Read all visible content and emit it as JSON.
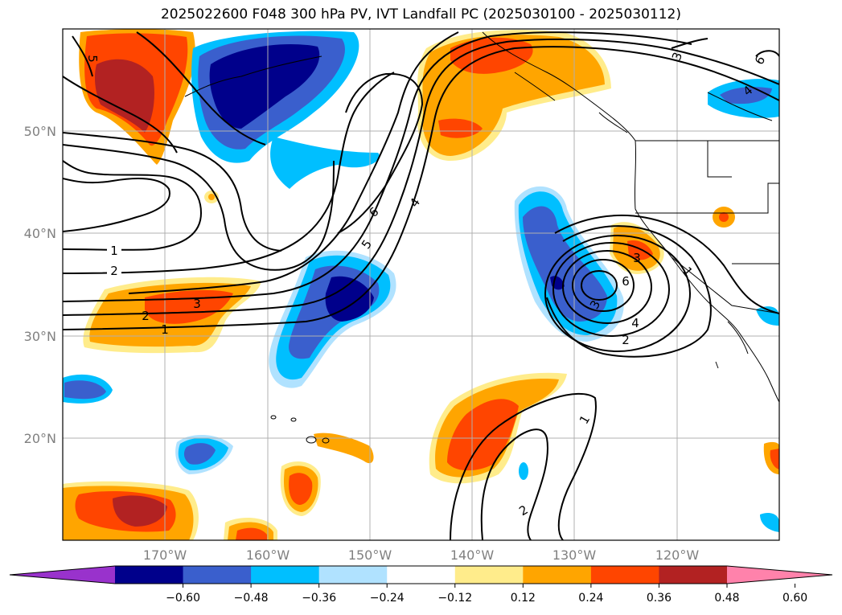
{
  "title": "2025022600 F048 300 hPa PV, IVT Landfall PC (2025030100 - 2025030112)",
  "lat_labels": [
    "50°N",
    "40°N",
    "30°N",
    "20°N"
  ],
  "lon_labels": [
    "170°W",
    "160°W",
    "150°W",
    "140°W",
    "130°W",
    "120°W"
  ],
  "colorbar": {
    "ticks": [
      "−0.60",
      "−0.48",
      "−0.36",
      "−0.24",
      "−0.12",
      "0.12",
      "0.24",
      "0.36",
      "0.48",
      "0.60"
    ],
    "colors": [
      "#9932cc",
      "#00008b",
      "#3a5fcd",
      "#00bfff",
      "#b0e2ff",
      "#ffffff",
      "#ffec8b",
      "#ffa500",
      "#ff4500",
      "#b22222",
      "#ff82ab"
    ]
  },
  "contour_labels": [
    "1",
    "2",
    "3",
    "4",
    "5",
    "6",
    "1",
    "2",
    "3",
    "4",
    "5",
    "6",
    "1",
    "2",
    "3",
    "1",
    "2",
    "3",
    "4",
    "6"
  ]
}
